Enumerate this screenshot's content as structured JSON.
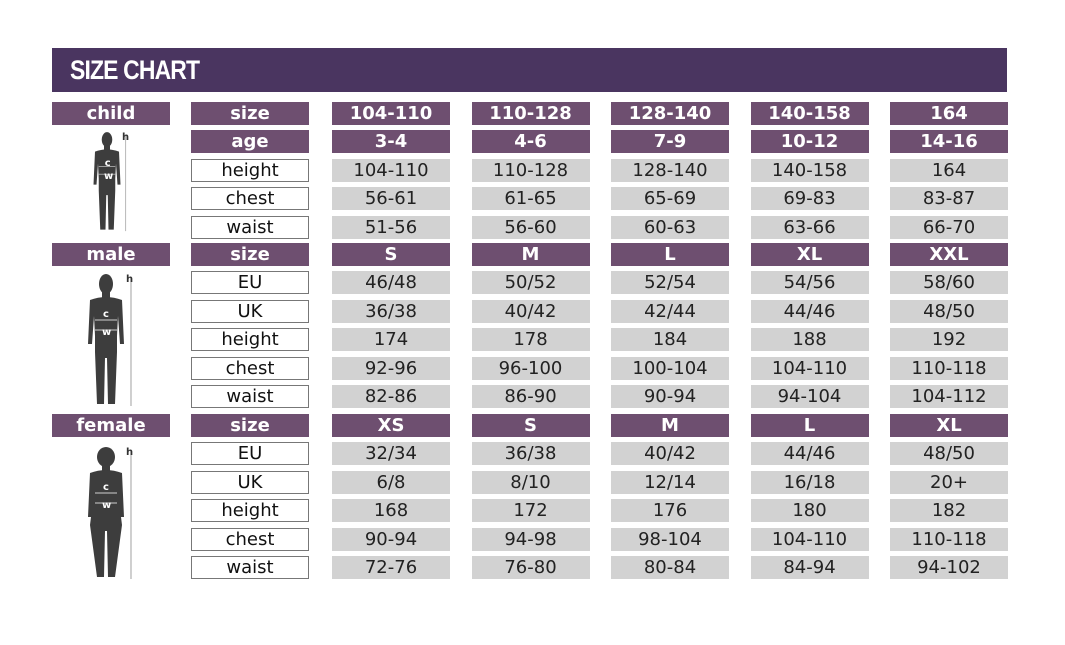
{
  "title": "SIZE CHART",
  "colors": {
    "title_bar": "#4a3560",
    "header_cell": "#6e4f70",
    "value_cell": "#d2d2d2"
  },
  "sections": [
    {
      "group": "child",
      "figure_icon": "child-silhouette-icon",
      "figure_marks": [
        "h",
        "c",
        "w"
      ],
      "rows": [
        {
          "label": "size",
          "header": true,
          "values": [
            "104-110",
            "110-128",
            "128-140",
            "140-158",
            "164"
          ]
        },
        {
          "label": "age",
          "header": true,
          "values": [
            "3-4",
            "4-6",
            "7-9",
            "10-12",
            "14-16"
          ]
        },
        {
          "label": "height",
          "values": [
            "104-110",
            "110-128",
            "128-140",
            "140-158",
            "164"
          ]
        },
        {
          "label": "chest",
          "values": [
            "56-61",
            "61-65",
            "65-69",
            "69-83",
            "83-87"
          ]
        },
        {
          "label": "waist",
          "values": [
            "51-56",
            "56-60",
            "60-63",
            "63-66",
            "66-70"
          ]
        }
      ]
    },
    {
      "group": "male",
      "figure_icon": "male-silhouette-icon",
      "figure_marks": [
        "h",
        "c",
        "w"
      ],
      "rows": [
        {
          "label": "size",
          "header": true,
          "values": [
            "S",
            "M",
            "L",
            "XL",
            "XXL"
          ]
        },
        {
          "label": "EU",
          "values": [
            "46/48",
            "50/52",
            "52/54",
            "54/56",
            "58/60"
          ]
        },
        {
          "label": "UK",
          "values": [
            "36/38",
            "40/42",
            "42/44",
            "44/46",
            "48/50"
          ]
        },
        {
          "label": "height",
          "values": [
            "174",
            "178",
            "184",
            "188",
            "192"
          ]
        },
        {
          "label": "chest",
          "values": [
            "92-96",
            "96-100",
            "100-104",
            "104-110",
            "110-118"
          ]
        },
        {
          "label": "waist",
          "values": [
            "82-86",
            "86-90",
            "90-94",
            "94-104",
            "104-112"
          ]
        }
      ]
    },
    {
      "group": "female",
      "figure_icon": "female-silhouette-icon",
      "figure_marks": [
        "h",
        "c",
        "w"
      ],
      "rows": [
        {
          "label": "size",
          "header": true,
          "values": [
            "XS",
            "S",
            "M",
            "L",
            "XL"
          ]
        },
        {
          "label": "EU",
          "values": [
            "32/34",
            "36/38",
            "40/42",
            "44/46",
            "48/50"
          ]
        },
        {
          "label": "UK",
          "values": [
            "6/8",
            "8/10",
            "12/14",
            "16/18",
            "20+"
          ]
        },
        {
          "label": "height",
          "values": [
            "168",
            "172",
            "176",
            "180",
            "182"
          ]
        },
        {
          "label": "chest",
          "values": [
            "90-94",
            "94-98",
            "98-104",
            "104-110",
            "110-118"
          ]
        },
        {
          "label": "waist",
          "values": [
            "72-76",
            "76-80",
            "80-84",
            "84-94",
            "94-102"
          ]
        }
      ]
    }
  ]
}
